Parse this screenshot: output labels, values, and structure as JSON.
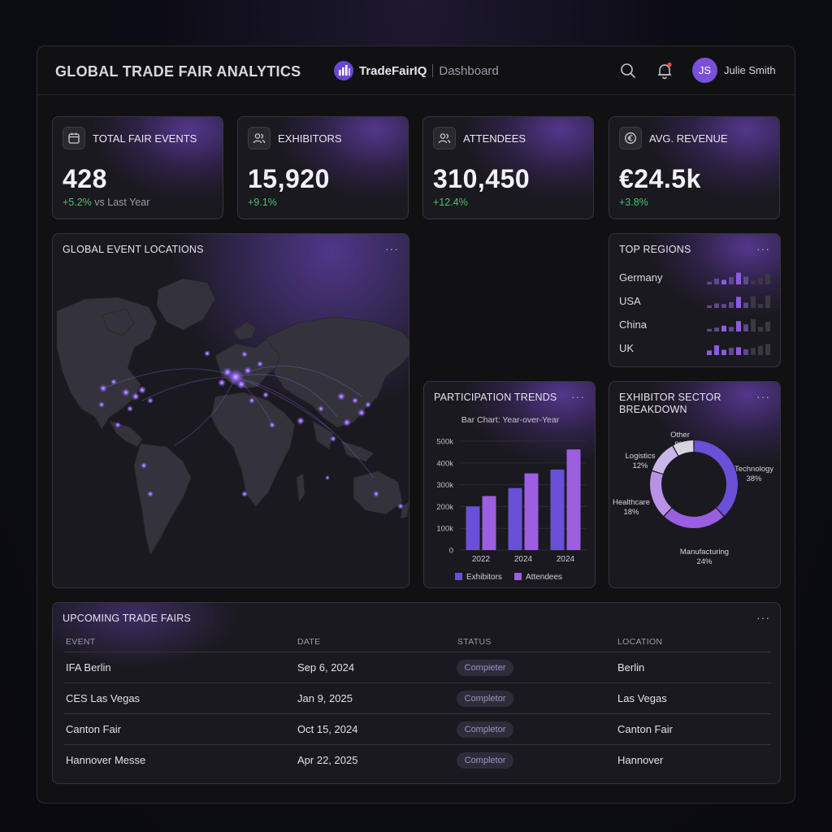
{
  "header": {
    "title": "GLOBAL TRADE FAIR ANALYTICS",
    "brand": "TradeFairIQ",
    "page": "Dashboard",
    "user_initials": "JS",
    "user_name": "Julie Smith"
  },
  "kpis": [
    {
      "label": "TOTAL FAIR EVENTS",
      "value": "428",
      "delta": "+5.2%",
      "delta_suffix": " vs Last Year",
      "icon": "calendar-icon"
    },
    {
      "label": "EXHIBITORS",
      "value": "15,920",
      "delta": "+9.1%",
      "delta_suffix": "",
      "icon": "users-icon"
    },
    {
      "label": "ATTENDEES",
      "value": "310,450",
      "delta": "+12.4%",
      "delta_suffix": "",
      "icon": "users-icon"
    },
    {
      "label": "AVG. REVENUE",
      "value": "€24.5k",
      "delta": "+3.8%",
      "delta_suffix": "",
      "icon": "euro-icon"
    }
  ],
  "map": {
    "title": "GLOBAL EVENT LOCATIONS",
    "more": "···"
  },
  "regions": {
    "title": "TOP REGIONS",
    "more": "···",
    "items": [
      {
        "name": "Germany",
        "levels": [
          0.2,
          0.45,
          0.35,
          0.55,
          0.9,
          0.6,
          0.3,
          0.5,
          0.8
        ]
      },
      {
        "name": "USA",
        "levels": [
          0.2,
          0.35,
          0.3,
          0.45,
          0.85,
          0.4,
          0.9,
          0.3,
          0.95
        ]
      },
      {
        "name": "China",
        "levels": [
          0.2,
          0.3,
          0.45,
          0.35,
          0.8,
          0.55,
          0.95,
          0.35,
          0.75
        ]
      },
      {
        "name": "UK",
        "levels": [
          0.35,
          0.75,
          0.4,
          0.55,
          0.6,
          0.45,
          0.55,
          0.7,
          0.85
        ]
      }
    ],
    "accent": "#8a5ce0",
    "muted": "#3a3942"
  },
  "trends": {
    "title": "PARTICIPATION TRENDS",
    "more": "···"
  },
  "sector": {
    "title_line1": "EXHIBITOR SECTOR",
    "title_line2": "BREAKDOWN",
    "more": "···"
  },
  "chart_data": [
    {
      "type": "bar",
      "title": "Bar Chart: Year-over-Year",
      "categories": [
        "2022",
        "2024",
        "2024"
      ],
      "series": [
        {
          "name": "Exhibitors",
          "values": [
            200000,
            285000,
            370000
          ],
          "color": "#6a4fd8"
        },
        {
          "name": "Attendees",
          "values": [
            248000,
            352000,
            462000
          ],
          "color": "#9b5fe0"
        }
      ],
      "yticks": [
        "0",
        "100k",
        "200k",
        "300k",
        "400k",
        "500k"
      ],
      "ylim": [
        0,
        500000
      ],
      "legend": "bottom"
    },
    {
      "type": "pie",
      "slices": [
        {
          "label": "Technology",
          "value": 38,
          "text": "38%",
          "color": "#6a4fd8"
        },
        {
          "label": "Manufacturing",
          "value": 24,
          "text": "24%",
          "color": "#9a5fe0"
        },
        {
          "label": "Healthcare",
          "value": 18,
          "text": "18%",
          "color": "#b792e6"
        },
        {
          "label": "Logistics",
          "value": 12,
          "text": "12%",
          "color": "#c9b6ea"
        },
        {
          "label": "Other",
          "value": 8,
          "text": "8%",
          "color": "#d6d4dc"
        }
      ]
    }
  ],
  "table": {
    "title": "UPCOMING TRADE FAIRS",
    "more": "···",
    "headers": [
      "EVENT",
      "DATE",
      "STATUS",
      "LOCATION"
    ],
    "rows": [
      {
        "event": "IFA Berlin",
        "date": "Sep 6, 2024",
        "status": "Compieter",
        "location": "Berlin"
      },
      {
        "event": "CES Las Vegas",
        "date": "Jan 9, 2025",
        "status": "Completor",
        "location": "Las Vegas"
      },
      {
        "event": "Canton Fair",
        "date": "Oct 15, 2024",
        "status": "Completor",
        "location": "Canton Fair"
      },
      {
        "event": "Hannover Messe",
        "date": "Apr 22, 2025",
        "status": "Completor",
        "location": "Hannover"
      }
    ]
  }
}
